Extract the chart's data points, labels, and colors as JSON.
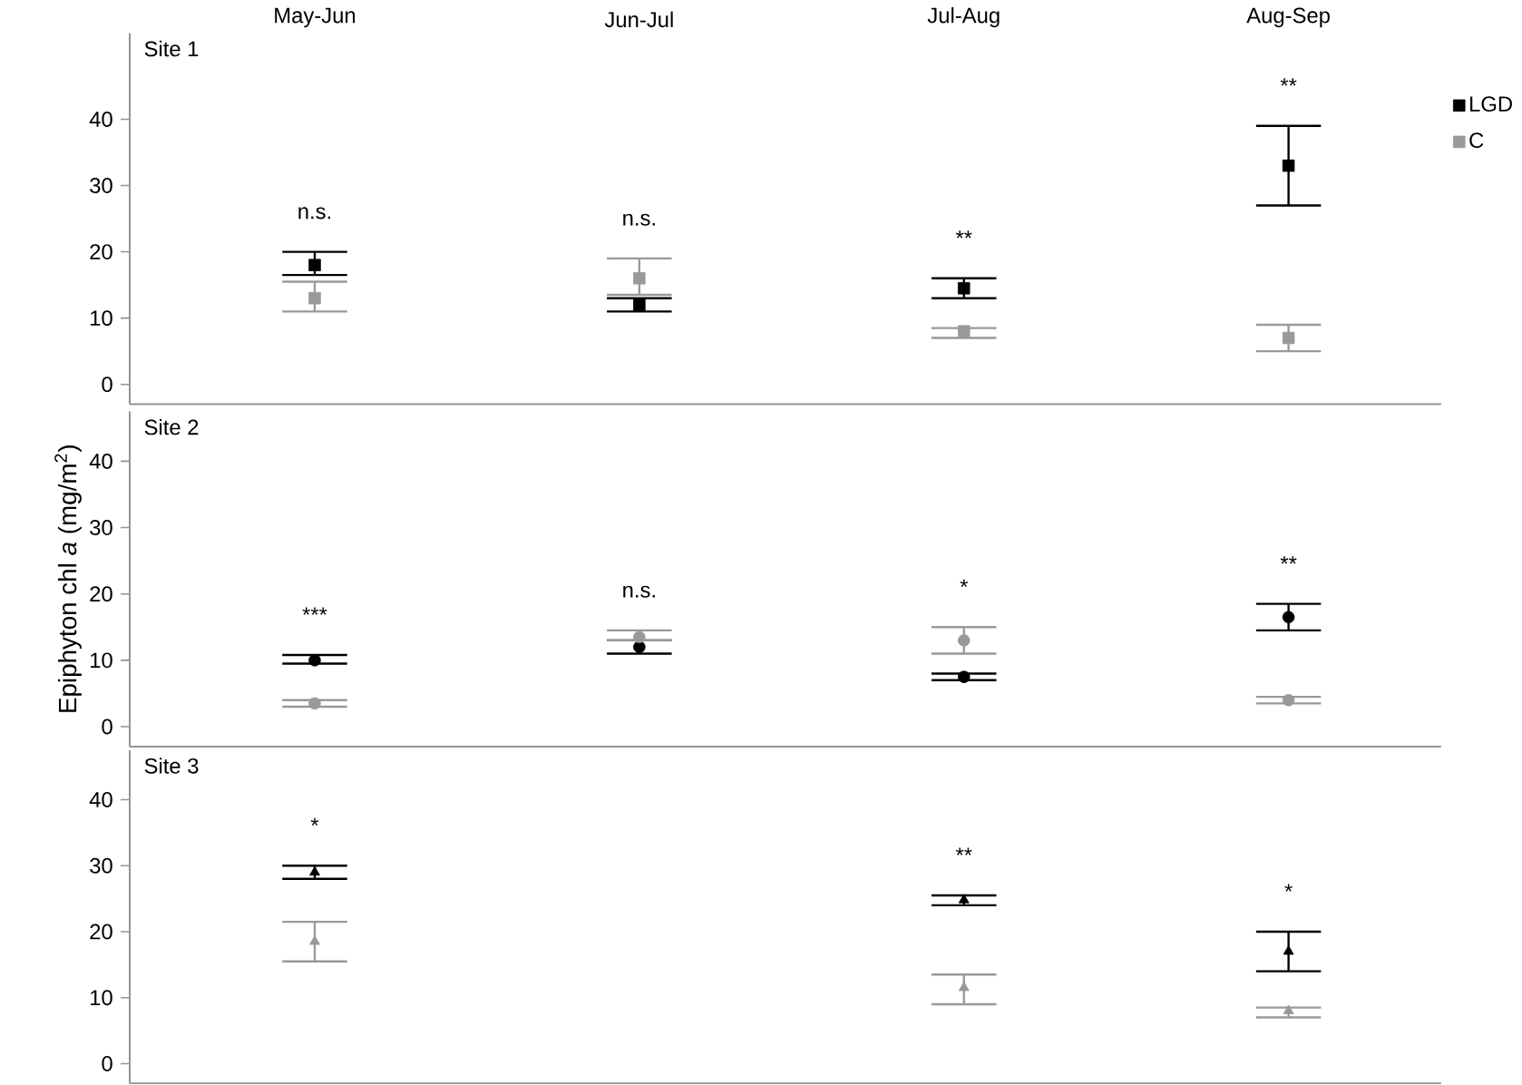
{
  "chart_data": [
    {
      "type": "scatter",
      "title": "Site 1",
      "categories": [
        "May-Jun",
        "Jun-Jul",
        "Jul-Aug",
        "Aug-Sep"
      ],
      "ylim": [
        -3,
        53
      ],
      "yticks": [
        0,
        10,
        20,
        30,
        40
      ],
      "marker": "square",
      "legend": "right",
      "series": [
        {
          "name": "LGD",
          "color": "#000000",
          "values": [
            18,
            12,
            14.5,
            33
          ],
          "errors": [
            [
              16.5,
              20
            ],
            [
              11,
              13
            ],
            [
              13,
              16
            ],
            [
              27,
              39
            ]
          ]
        },
        {
          "name": "C",
          "color": "#999999",
          "values": [
            13,
            16,
            8,
            7
          ],
          "errors": [
            [
              11,
              15.5
            ],
            [
              13.5,
              19
            ],
            [
              7,
              8.5
            ],
            [
              5,
              9
            ]
          ]
        }
      ],
      "annotations": [
        "n.s.",
        "n.s.",
        "**",
        "**"
      ]
    },
    {
      "type": "scatter",
      "title": "Site 2",
      "ylabel": "Epiphyton chl *a* (mg/m$^{2}$)",
      "categories": [
        null,
        null,
        null,
        null
      ],
      "ylim": [
        -3,
        47.5
      ],
      "yticks": [
        0,
        10,
        20,
        30,
        40
      ],
      "marker": "circle",
      "tick_labels": "y",
      "series": [
        {
          "color": "#000000",
          "values": [
            10,
            12,
            7.5,
            16.5
          ],
          "errors": [
            [
              9.5,
              10.8
            ],
            [
              11,
              13
            ],
            [
              7,
              8
            ],
            [
              14.5,
              18.5
            ]
          ]
        },
        {
          "color": "#999999",
          "values": [
            3.5,
            13.5,
            13,
            4
          ],
          "errors": [
            [
              3,
              4
            ],
            [
              13,
              14.5
            ],
            [
              11,
              15
            ],
            [
              3.5,
              4.5
            ]
          ]
        }
      ],
      "annotations": [
        "***",
        "n.s.",
        "*",
        "**"
      ]
    },
    {
      "type": "scatter",
      "title": "Site 3",
      "categories": [
        null,
        null,
        null,
        null
      ],
      "ylim": [
        -3,
        47.5
      ],
      "yticks": [
        0,
        10,
        20,
        30,
        40
      ],
      "marker": "triangle",
      "tick_labels": "y",
      "series": [
        {
          "color": "#000000",
          "values": [
            29,
            null,
            24.8,
            17
          ],
          "errors": [
            [
              28,
              30
            ],
            null,
            [
              24,
              25.5
            ],
            [
              14,
              20
            ]
          ]
        },
        {
          "color": "#999999",
          "values": [
            18.5,
            null,
            11.5,
            8
          ],
          "errors": [
            [
              15.5,
              21.5
            ],
            null,
            [
              9,
              13.5
            ],
            [
              7,
              8.5
            ]
          ]
        }
      ],
      "annotations": [
        "*",
        "**",
        "*"
      ]
    }
  ]
}
